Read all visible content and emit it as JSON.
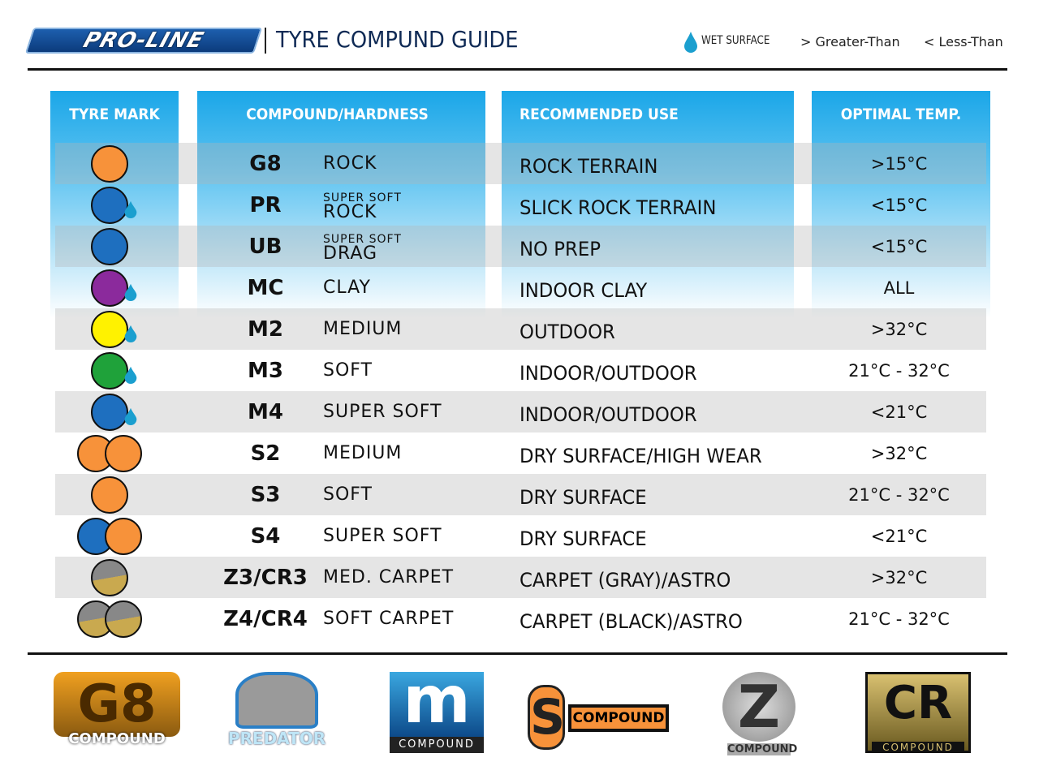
{
  "header": {
    "brand": "PRO-LINE",
    "title": "TYRE COMPUND GUIDE",
    "legend": {
      "wet": "WET SURFACE",
      "gt": "> Greater-Than",
      "lt": "< Less-Than"
    }
  },
  "columns": [
    "TYRE MARK",
    "COMPOUND/HARDNESS",
    "RECOMMENDED USE",
    "OPTIMAL TEMP."
  ],
  "colors": {
    "orange": "#f7923a",
    "blue": "#1e6fbf",
    "purple": "#8b2a9c",
    "yellow": "#fff200",
    "green": "#1fa23a",
    "gray": "#888888",
    "gold": "#c9a94f",
    "header_blue": "#1aa6e8"
  },
  "rows": [
    {
      "code": "G8",
      "hard": "ROCK",
      "use": "ROCK TERRAIN",
      "temp": ">15°C",
      "mark": [
        "orange"
      ],
      "wet": false
    },
    {
      "code": "PR",
      "hard_small": "SUPER SOFT",
      "hard": "ROCK",
      "use": "SLICK ROCK TERRAIN",
      "temp": "<15°C",
      "mark": [
        "blue"
      ],
      "wet": true
    },
    {
      "code": "UB",
      "hard_small": "SUPER SOFT",
      "hard": "DRAG",
      "use": "NO PREP",
      "temp": "<15°C",
      "mark": [
        "blue"
      ],
      "wet": false
    },
    {
      "code": "MC",
      "hard": "CLAY",
      "use": "INDOOR CLAY",
      "temp": "ALL",
      "mark": [
        "purple"
      ],
      "wet": true
    },
    {
      "code": "M2",
      "hard": "MEDIUM",
      "use": "OUTDOOR",
      "temp": ">32°C",
      "mark": [
        "yellow"
      ],
      "wet": true
    },
    {
      "code": "M3",
      "hard": "SOFT",
      "use": "INDOOR/OUTDOOR",
      "temp": "21°C - 32°C",
      "mark": [
        "green"
      ],
      "wet": true
    },
    {
      "code": "M4",
      "hard": "SUPER SOFT",
      "use": "INDOOR/OUTDOOR",
      "temp": "<21°C",
      "mark": [
        "blue"
      ],
      "wet": true
    },
    {
      "code": "S2",
      "hard": "MEDIUM",
      "use": "DRY SURFACE/HIGH WEAR",
      "temp": ">32°C",
      "mark": [
        "orange",
        "orange"
      ],
      "wet": false
    },
    {
      "code": "S3",
      "hard": "SOFT",
      "use": "DRY SURFACE",
      "temp": "21°C - 32°C",
      "mark": [
        "orange"
      ],
      "wet": false
    },
    {
      "code": "S4",
      "hard": "SUPER SOFT",
      "use": "DRY SURFACE",
      "temp": "<21°C",
      "mark": [
        "blue",
        "orange"
      ],
      "wet": false
    },
    {
      "code": "Z3/CR3",
      "hard": "MED. CARPET",
      "use": "CARPET (GRAY)/ASTRO",
      "temp": ">32°C",
      "mark": [
        "split"
      ],
      "wet": false
    },
    {
      "code": "Z4/CR4",
      "hard": "SOFT CARPET",
      "use": "CARPET (BLACK)/ASTRO",
      "temp": "21°C - 32°C",
      "mark": [
        "split",
        "split"
      ],
      "wet": false
    }
  ],
  "logos": [
    {
      "big": "G8",
      "label": "COMPOUND"
    },
    {
      "big": "",
      "label": "PREDATOR"
    },
    {
      "big": "m",
      "label": "COMPOUND"
    },
    {
      "big": "S",
      "label": "COMPOUND"
    },
    {
      "big": "Z",
      "label": "COMPOUND"
    },
    {
      "big": "CR",
      "label": "COMPOUND"
    }
  ]
}
